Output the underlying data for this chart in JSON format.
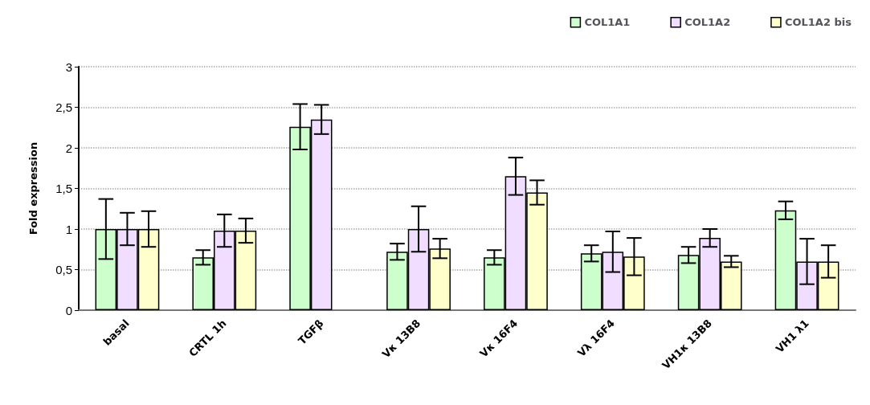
{
  "chart_data": {
    "type": "bar",
    "ylabel": "Fold expression",
    "categories": [
      "basal",
      "CRTL 1h",
      "TGFβ",
      "Vκ 13B8",
      "Vκ 16F4",
      "Vλ 16F4",
      "VH1κ 13B8",
      "VH1 λ1"
    ],
    "series": [
      {
        "name": "COL1A1",
        "color": "#ccffcc",
        "values": [
          1,
          0.65,
          2.26,
          0.72,
          0.65,
          0.7,
          0.68,
          1.23
        ],
        "errors": [
          0.37,
          0.09,
          0.28,
          0.1,
          0.09,
          0.1,
          0.1,
          0.11
        ]
      },
      {
        "name": "COL1A2",
        "color": "#f0ddff",
        "values": [
          1,
          0.98,
          2.35,
          1.0,
          1.65,
          0.72,
          0.89,
          0.6
        ],
        "errors": [
          0.2,
          0.2,
          0.18,
          0.28,
          0.23,
          0.25,
          0.11,
          0.28
        ]
      },
      {
        "name": "COL1A2 bis",
        "color": "#ffffcc",
        "values": [
          1,
          0.98,
          null,
          0.76,
          1.45,
          0.66,
          0.6,
          0.6
        ],
        "errors": [
          0.22,
          0.15,
          null,
          0.12,
          0.15,
          0.23,
          0.07,
          0.2
        ]
      }
    ],
    "ylim": [
      0,
      3
    ],
    "yticks": [
      0,
      {
        "value": 0.5,
        "label": "0,5"
      },
      1,
      {
        "value": 1.5,
        "label": "1,5"
      },
      2,
      {
        "value": 2.5,
        "label": "2,5"
      },
      3
    ],
    "grid": "y",
    "legend": "top right"
  }
}
